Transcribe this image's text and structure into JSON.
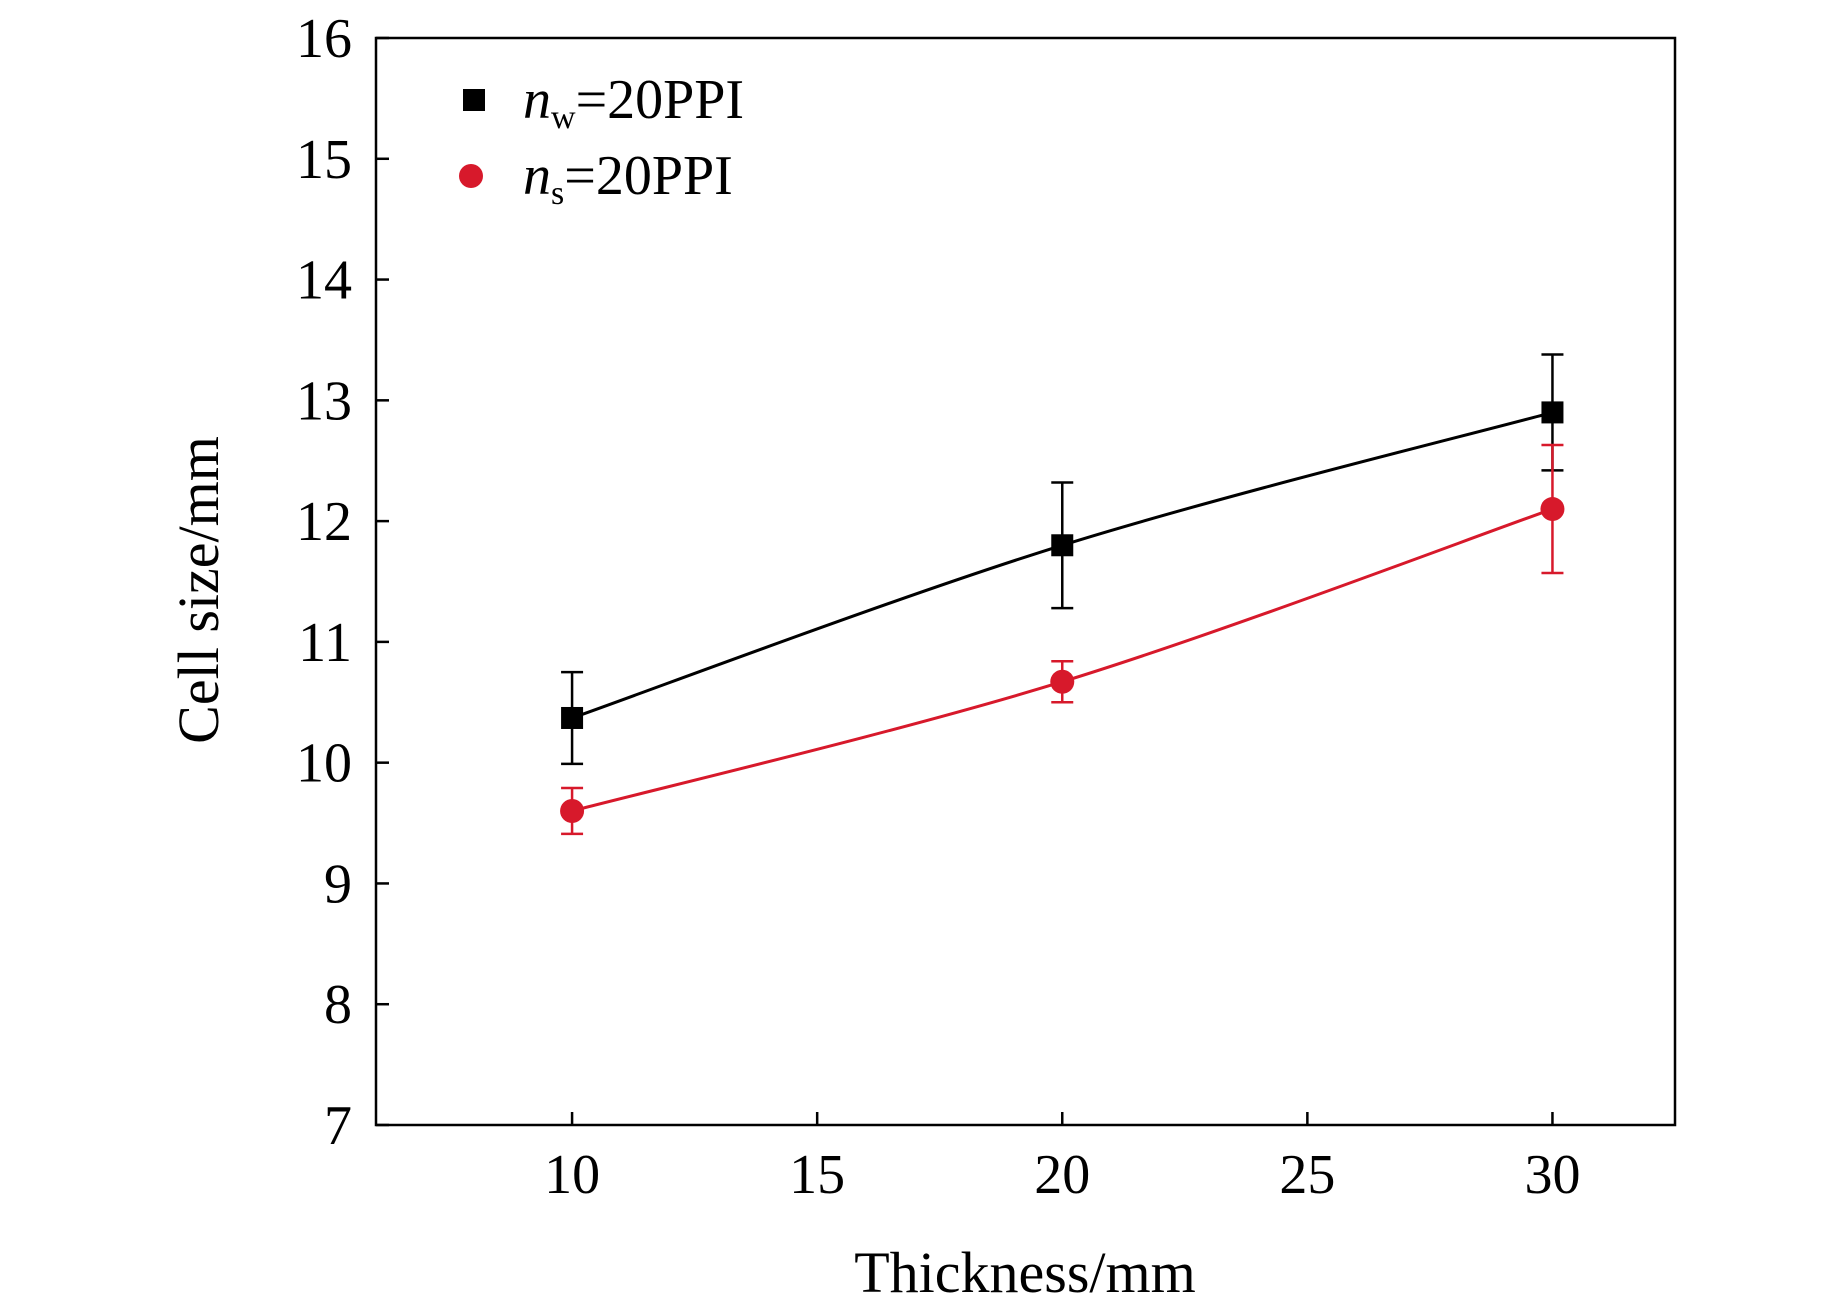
{
  "chart_data": {
    "type": "line",
    "x_label": "Thickness/mm",
    "y_label": "Cell size/mm",
    "x": [
      10,
      20,
      30
    ],
    "series": [
      {
        "name": "nw=20PPI",
        "color": "#000000",
        "marker": "square",
        "values": [
          10.37,
          11.8,
          12.9
        ],
        "errors": [
          0.38,
          0.52,
          0.48
        ]
      },
      {
        "name": "ns=20PPI",
        "color": "#d7192b",
        "marker": "circle",
        "values": [
          9.6,
          10.67,
          12.1
        ],
        "errors": [
          0.19,
          0.17,
          0.53
        ]
      }
    ],
    "xlim": [
      6,
      32.5
    ],
    "xticks": [
      10,
      15,
      20,
      25,
      30
    ],
    "ylim": [
      7,
      16
    ],
    "yticks": [
      7,
      8,
      9,
      10,
      11,
      12,
      13,
      14,
      15,
      16
    ],
    "legend": "upper left"
  }
}
